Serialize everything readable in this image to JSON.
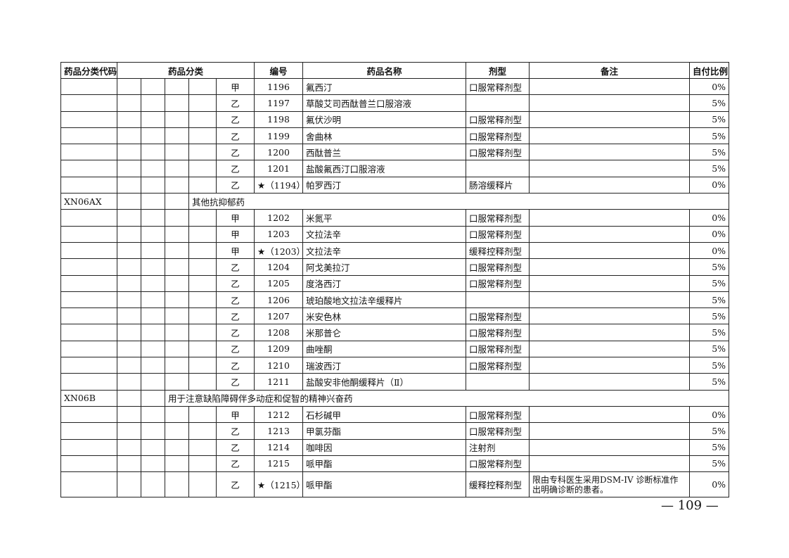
{
  "headers": {
    "code": "药品分类代码",
    "category": "药品分类",
    "number": "编号",
    "name": "药品名称",
    "form": "剂型",
    "note": "备注",
    "ratio": "自付比例"
  },
  "rows": [
    {
      "type": "drug",
      "grade": "甲",
      "number": "1196",
      "name": "氟西汀",
      "form": "口服常释剂型",
      "note": "",
      "ratio": "0%"
    },
    {
      "type": "drug",
      "grade": "乙",
      "number": "1197",
      "name": "草酸艾司西酞普兰口服溶液",
      "form": "",
      "note": "",
      "ratio": "5%"
    },
    {
      "type": "drug",
      "grade": "乙",
      "number": "1198",
      "name": "氟伏沙明",
      "form": "口服常释剂型",
      "note": "",
      "ratio": "5%"
    },
    {
      "type": "drug",
      "grade": "乙",
      "number": "1199",
      "name": "舍曲林",
      "form": "口服常释剂型",
      "note": "",
      "ratio": "5%"
    },
    {
      "type": "drug",
      "grade": "乙",
      "number": "1200",
      "name": "西酞普兰",
      "form": "口服常释剂型",
      "note": "",
      "ratio": "5%"
    },
    {
      "type": "drug",
      "grade": "乙",
      "number": "1201",
      "name": "盐酸氟西汀口服溶液",
      "form": "",
      "note": "",
      "ratio": "5%"
    },
    {
      "type": "drug",
      "grade": "乙",
      "number": "★（1194）",
      "name": "帕罗西汀",
      "form": "肠溶缓释片",
      "note": "",
      "ratio": "0%"
    },
    {
      "type": "category",
      "level": 4,
      "code": "XN06AX",
      "label": "其他抗抑郁药"
    },
    {
      "type": "drug",
      "grade": "甲",
      "number": "1202",
      "name": "米氮平",
      "form": "口服常释剂型",
      "note": "",
      "ratio": "0%"
    },
    {
      "type": "drug",
      "grade": "甲",
      "number": "1203",
      "name": "文拉法辛",
      "form": "口服常释剂型",
      "note": "",
      "ratio": "0%"
    },
    {
      "type": "drug",
      "grade": "甲",
      "number": "★（1203）",
      "name": "文拉法辛",
      "form": "缓释控释剂型",
      "note": "",
      "ratio": "0%"
    },
    {
      "type": "drug",
      "grade": "乙",
      "number": "1204",
      "name": "阿戈美拉汀",
      "form": "口服常释剂型",
      "note": "",
      "ratio": "5%"
    },
    {
      "type": "drug",
      "grade": "乙",
      "number": "1205",
      "name": "度洛西汀",
      "form": "口服常释剂型",
      "note": "",
      "ratio": "5%"
    },
    {
      "type": "drug",
      "grade": "乙",
      "number": "1206",
      "name": "琥珀酸地文拉法辛缓释片",
      "form": "",
      "note": "",
      "ratio": "5%"
    },
    {
      "type": "drug",
      "grade": "乙",
      "number": "1207",
      "name": "米安色林",
      "form": "口服常释剂型",
      "note": "",
      "ratio": "5%"
    },
    {
      "type": "drug",
      "grade": "乙",
      "number": "1208",
      "name": "米那普仑",
      "form": "口服常释剂型",
      "note": "",
      "ratio": "5%"
    },
    {
      "type": "drug",
      "grade": "乙",
      "number": "1209",
      "name": "曲唑酮",
      "form": "口服常释剂型",
      "note": "",
      "ratio": "5%"
    },
    {
      "type": "drug",
      "grade": "乙",
      "number": "1210",
      "name": "瑞波西汀",
      "form": "口服常释剂型",
      "note": "",
      "ratio": "5%"
    },
    {
      "type": "drug",
      "grade": "乙",
      "number": "1211",
      "name": "盐酸安非他酮缓释片（Ⅱ）",
      "form": "",
      "note": "",
      "ratio": "5%"
    },
    {
      "type": "category",
      "level": 3,
      "code": "XN06B",
      "label": "用于注意缺陷障碍伴多动症和促智的精神兴奋药"
    },
    {
      "type": "drug",
      "grade": "甲",
      "number": "1212",
      "name": "石杉碱甲",
      "form": "口服常释剂型",
      "note": "",
      "ratio": "0%"
    },
    {
      "type": "drug",
      "grade": "乙",
      "number": "1213",
      "name": "甲氯芬酯",
      "form": "口服常释剂型",
      "note": "",
      "ratio": "5%"
    },
    {
      "type": "drug",
      "grade": "乙",
      "number": "1214",
      "name": "咖啡因",
      "form": "注射剂",
      "note": "",
      "ratio": "5%"
    },
    {
      "type": "drug",
      "grade": "乙",
      "number": "1215",
      "name": "哌甲酯",
      "form": "口服常释剂型",
      "note": "",
      "ratio": "5%"
    },
    {
      "type": "drug",
      "grade": "乙",
      "number": "★（1215）",
      "name": "哌甲酯",
      "form": "缓释控释剂型",
      "note": "限由专科医生采用DSM-IV 诊断标准作出明确诊断的患者。",
      "ratio": "0%"
    }
  ],
  "page_number": "— 109 —"
}
